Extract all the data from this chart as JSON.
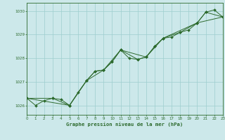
{
  "title": "Graphe pression niveau de la mer (hPa)",
  "bg_color": "#cce8ea",
  "line_color": "#2d6a2d",
  "grid_color": "#9ecece",
  "x_min": 0,
  "x_max": 23,
  "y_min": 1025.6,
  "y_max": 1030.35,
  "y_ticks": [
    1026,
    1027,
    1028,
    1029,
    1030
  ],
  "x_ticks": [
    0,
    1,
    2,
    3,
    4,
    5,
    6,
    7,
    8,
    9,
    10,
    11,
    12,
    13,
    14,
    15,
    16,
    17,
    18,
    19,
    20,
    21,
    22,
    23
  ],
  "series1": [
    [
      0,
      1026.3
    ],
    [
      1,
      1026.0
    ],
    [
      2,
      1026.2
    ],
    [
      3,
      1026.3
    ],
    [
      4,
      1026.25
    ],
    [
      5,
      1026.0
    ],
    [
      6,
      1026.55
    ],
    [
      7,
      1027.05
    ],
    [
      8,
      1027.45
    ],
    [
      9,
      1027.5
    ],
    [
      10,
      1027.85
    ],
    [
      11,
      1028.35
    ],
    [
      12,
      1028.0
    ],
    [
      13,
      1027.95
    ],
    [
      14,
      1028.05
    ],
    [
      15,
      1028.5
    ],
    [
      16,
      1028.85
    ],
    [
      17,
      1028.9
    ],
    [
      18,
      1029.1
    ],
    [
      19,
      1029.2
    ],
    [
      20,
      1029.5
    ],
    [
      21,
      1029.95
    ],
    [
      22,
      1030.05
    ],
    [
      23,
      1029.75
    ]
  ],
  "series2": [
    [
      0,
      1026.3
    ],
    [
      3,
      1026.3
    ],
    [
      5,
      1026.0
    ],
    [
      7,
      1027.05
    ],
    [
      8,
      1027.45
    ],
    [
      9,
      1027.5
    ],
    [
      10,
      1027.85
    ],
    [
      11,
      1028.35
    ],
    [
      13,
      1027.95
    ],
    [
      14,
      1028.05
    ],
    [
      15,
      1028.5
    ],
    [
      16,
      1028.85
    ],
    [
      18,
      1029.1
    ],
    [
      20,
      1029.5
    ],
    [
      21,
      1029.95
    ],
    [
      23,
      1029.75
    ]
  ],
  "series3": [
    [
      0,
      1026.3
    ],
    [
      5,
      1026.0
    ],
    [
      7,
      1027.05
    ],
    [
      9,
      1027.5
    ],
    [
      11,
      1028.35
    ],
    [
      14,
      1028.05
    ],
    [
      16,
      1028.85
    ],
    [
      20,
      1029.5
    ],
    [
      23,
      1029.75
    ]
  ]
}
